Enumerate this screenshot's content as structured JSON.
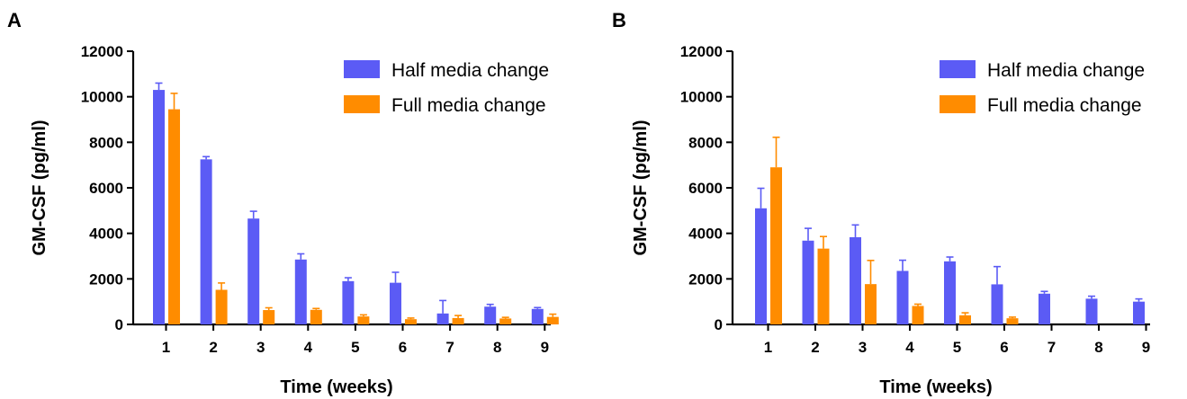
{
  "colors": {
    "half": "#5b5bf5",
    "full": "#ff8c00",
    "axis": "#000000"
  },
  "chart_data": [
    {
      "panel": "A",
      "type": "bar",
      "categories": [
        "1",
        "2",
        "3",
        "4",
        "5",
        "6",
        "7",
        "8",
        "9"
      ],
      "xlabel": "Time (weeks)",
      "ylabel": "GM-CSF (pg/ml)",
      "ylim": [
        0,
        12000
      ],
      "yticks": [
        0,
        2000,
        4000,
        6000,
        8000,
        10000,
        12000
      ],
      "yticklabels": [
        "0",
        "2000",
        "4000",
        "6000",
        "8000",
        "10000",
        "12000"
      ],
      "legend_position": "top-right",
      "series": [
        {
          "name": "Half media change",
          "color_key": "half",
          "values": [
            10300,
            7250,
            4650,
            2850,
            1900,
            1830,
            480,
            780,
            680
          ],
          "errors": [
            300,
            120,
            320,
            250,
            150,
            460,
            570,
            100,
            60
          ]
        },
        {
          "name": "Full media change",
          "color_key": "full",
          "values": [
            9450,
            1520,
            630,
            640,
            350,
            230,
            280,
            260,
            330
          ],
          "errors": [
            700,
            300,
            100,
            60,
            70,
            50,
            110,
            50,
            120
          ]
        }
      ]
    },
    {
      "panel": "B",
      "type": "bar",
      "categories": [
        "1",
        "2",
        "3",
        "4",
        "5",
        "6",
        "7",
        "8",
        "9"
      ],
      "xlabel": "Time (weeks)",
      "ylabel": "GM-CSF (pg/ml)",
      "ylim": [
        0,
        12000
      ],
      "yticks": [
        0,
        2000,
        4000,
        6000,
        8000,
        10000,
        12000
      ],
      "yticklabels": [
        "0",
        "2000",
        "4000",
        "6000",
        "8000",
        "10000",
        "12000"
      ],
      "legend_position": "top-right",
      "series": [
        {
          "name": "Half media change",
          "color_key": "half",
          "values": [
            5100,
            3680,
            3830,
            2350,
            2770,
            1760,
            1350,
            1130,
            1000
          ],
          "errors": [
            880,
            540,
            540,
            470,
            190,
            780,
            100,
            110,
            120
          ]
        },
        {
          "name": "Full media change",
          "color_key": "full",
          "values": [
            6900,
            3330,
            1770,
            810,
            400,
            270,
            null,
            null,
            null
          ],
          "errors": [
            1320,
            530,
            1040,
            80,
            110,
            50,
            null,
            null,
            null
          ]
        }
      ]
    }
  ]
}
